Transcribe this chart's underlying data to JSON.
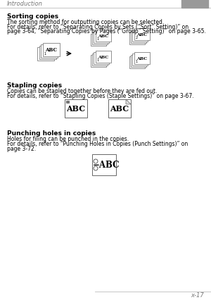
{
  "bg_color": "#ffffff",
  "header_text": "Introduction",
  "header_bar_color": "#999999",
  "footer_text": "x-17",
  "section1_title": "Sorting copies",
  "section1_body1": "The sorting method for outputting copies can be selected.",
  "section1_body2a": "For details, refer to “Separating Copies by Sets (“Sort” Setting)” on",
  "section1_body2b": "page 3-64, “Separating Copies by Pages (“Group” Setting)” on page 3-65.",
  "section2_title": "Stapling copies",
  "section2_body1": "Copies can be stapled together before they are fed out.",
  "section2_body2": "For details, refer to “Stapling Copies (Staple Settings)” on page 3-67.",
  "section3_title": "Punching holes in copies",
  "section3_body1": "Holes for filing can be punched in the copies.",
  "section3_body2a": "For details, refer to “Punching Holes in Copies (Punch Settings)” on",
  "section3_body2b": "page 3-72.",
  "text_color": "#000000",
  "gray_color": "#777777",
  "light_gray": "#bbbbbb",
  "border_color": "#666666",
  "mid_gray": "#aaaaaa"
}
